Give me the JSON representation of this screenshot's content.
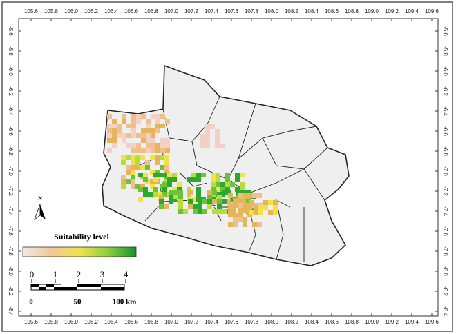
{
  "map": {
    "lon_ticks": [
      105.6,
      105.8,
      {
        "value": 106,
        "label": "106.0"
      },
      106.2,
      106.4,
      106.6,
      106.8,
      {
        "value": 107,
        "label": "107.0"
      },
      107.2,
      107.4,
      107.6,
      107.8,
      {
        "value": 108,
        "label": "108.0"
      },
      108.2,
      108.4,
      108.6,
      108.8,
      {
        "value": 109,
        "label": "109.0"
      },
      109.2,
      109.4,
      109.6
    ],
    "lat_ticks": [
      -5.6,
      -5.8,
      {
        "value": -6,
        "label": "-6.0"
      },
      -6.2,
      -6.4,
      -6.6,
      -6.8,
      {
        "value": -7,
        "label": "-7.0"
      },
      -7.2,
      -7.4,
      -7.6,
      -7.8,
      {
        "value": -8,
        "label": "-8.0"
      },
      -8.2,
      -8.4
    ],
    "north_label": "N",
    "legend": {
      "title": "Suitability level",
      "ticks": [
        0,
        1,
        2,
        3,
        4
      ]
    },
    "scale_bar": {
      "labels": [
        "0",
        "50",
        "100 km"
      ]
    }
  }
}
